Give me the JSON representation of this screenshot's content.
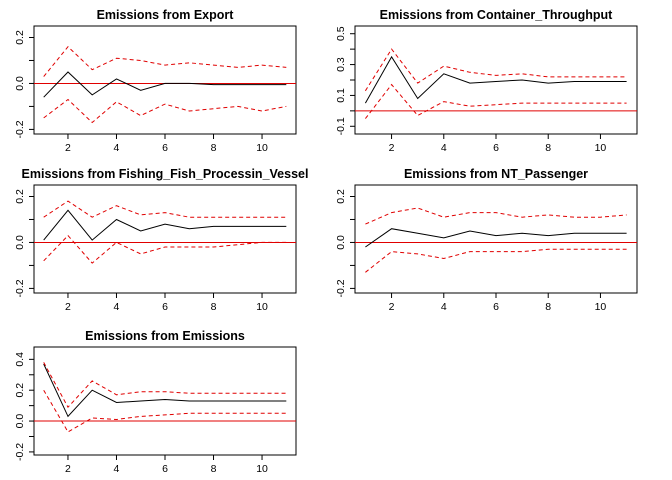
{
  "chart_data": [
    {
      "type": "line",
      "title": "Emissions from Export",
      "xlabel": "",
      "ylabel": "",
      "xlim": [
        0.6,
        11.4
      ],
      "ylim": [
        -0.22,
        0.25
      ],
      "xticks": [
        2,
        4,
        6,
        8,
        10
      ],
      "yticks": [
        -0.2,
        -0.1,
        0.0,
        0.1,
        0.2
      ],
      "ytick_labels": [
        "-0.2",
        "",
        "0.0",
        "",
        "0.2"
      ],
      "zero_line": 0,
      "x": [
        1,
        2,
        3,
        4,
        5,
        6,
        7,
        8,
        9,
        10,
        11
      ],
      "series": [
        {
          "role": "response",
          "color": "#000000",
          "style": "solid",
          "values": [
            -0.06,
            0.05,
            -0.05,
            0.02,
            -0.03,
            0.0,
            0.0,
            -0.005,
            -0.005,
            -0.005,
            -0.005
          ]
        },
        {
          "role": "upper",
          "color": "#e00000",
          "style": "dashed",
          "values": [
            0.03,
            0.16,
            0.06,
            0.11,
            0.1,
            0.08,
            0.09,
            0.08,
            0.07,
            0.08,
            0.07
          ]
        },
        {
          "role": "lower",
          "color": "#e00000",
          "style": "dashed",
          "values": [
            -0.15,
            -0.07,
            -0.17,
            -0.08,
            -0.14,
            -0.09,
            -0.12,
            -0.11,
            -0.1,
            -0.12,
            -0.1
          ]
        }
      ]
    },
    {
      "type": "line",
      "title": "Emissions from Container_Throughput",
      "xlabel": "",
      "ylabel": "",
      "xlim": [
        0.6,
        11.4
      ],
      "ylim": [
        -0.15,
        0.55
      ],
      "xticks": [
        2,
        4,
        6,
        8,
        10
      ],
      "yticks": [
        -0.1,
        0.0,
        0.1,
        0.2,
        0.3,
        0.4,
        0.5
      ],
      "ytick_labels": [
        "-0.1",
        "",
        "0.1",
        "",
        "0.3",
        "",
        "0.5"
      ],
      "zero_line": 0,
      "x": [
        1,
        2,
        3,
        4,
        5,
        6,
        7,
        8,
        9,
        10,
        11
      ],
      "series": [
        {
          "role": "response",
          "color": "#000000",
          "style": "solid",
          "values": [
            0.05,
            0.35,
            0.08,
            0.24,
            0.18,
            0.19,
            0.2,
            0.18,
            0.19,
            0.19,
            0.19
          ]
        },
        {
          "role": "upper",
          "color": "#e00000",
          "style": "dashed",
          "values": [
            0.13,
            0.4,
            0.18,
            0.29,
            0.25,
            0.23,
            0.24,
            0.22,
            0.22,
            0.22,
            0.22
          ]
        },
        {
          "role": "lower",
          "color": "#e00000",
          "style": "dashed",
          "values": [
            -0.05,
            0.17,
            -0.03,
            0.06,
            0.03,
            0.04,
            0.05,
            0.05,
            0.05,
            0.05,
            0.05
          ]
        }
      ]
    },
    {
      "type": "line",
      "title": "Emissions from Fishing_Fish_Processin_Vessel",
      "xlabel": "",
      "ylabel": "",
      "xlim": [
        0.6,
        11.4
      ],
      "ylim": [
        -0.22,
        0.25
      ],
      "xticks": [
        2,
        4,
        6,
        8,
        10
      ],
      "yticks": [
        -0.2,
        -0.1,
        0.0,
        0.1,
        0.2
      ],
      "ytick_labels": [
        "-0.2",
        "",
        "0.0",
        "",
        "0.2"
      ],
      "zero_line": 0,
      "x": [
        1,
        2,
        3,
        4,
        5,
        6,
        7,
        8,
        9,
        10,
        11
      ],
      "series": [
        {
          "role": "response",
          "color": "#000000",
          "style": "solid",
          "values": [
            0.01,
            0.14,
            0.01,
            0.1,
            0.05,
            0.08,
            0.06,
            0.07,
            0.07,
            0.07,
            0.07
          ]
        },
        {
          "role": "upper",
          "color": "#e00000",
          "style": "dashed",
          "values": [
            0.11,
            0.18,
            0.11,
            0.16,
            0.12,
            0.13,
            0.11,
            0.11,
            0.11,
            0.11,
            0.11
          ]
        },
        {
          "role": "lower",
          "color": "#e00000",
          "style": "dashed",
          "values": [
            -0.08,
            0.03,
            -0.09,
            0.0,
            -0.05,
            -0.02,
            -0.02,
            -0.02,
            -0.01,
            0.0,
            0.0
          ]
        }
      ]
    },
    {
      "type": "line",
      "title": "Emissions from NT_Passenger",
      "xlabel": "",
      "ylabel": "",
      "xlim": [
        0.6,
        11.4
      ],
      "ylim": [
        -0.22,
        0.25
      ],
      "xticks": [
        2,
        4,
        6,
        8,
        10
      ],
      "yticks": [
        -0.2,
        -0.1,
        0.0,
        0.1,
        0.2
      ],
      "ytick_labels": [
        "-0.2",
        "",
        "0.0",
        "",
        "0.2"
      ],
      "zero_line": 0,
      "x": [
        1,
        2,
        3,
        4,
        5,
        6,
        7,
        8,
        9,
        10,
        11
      ],
      "series": [
        {
          "role": "response",
          "color": "#000000",
          "style": "solid",
          "values": [
            -0.02,
            0.06,
            0.04,
            0.02,
            0.05,
            0.03,
            0.04,
            0.03,
            0.04,
            0.04,
            0.04
          ]
        },
        {
          "role": "upper",
          "color": "#e00000",
          "style": "dashed",
          "values": [
            0.08,
            0.13,
            0.15,
            0.11,
            0.13,
            0.13,
            0.11,
            0.12,
            0.11,
            0.11,
            0.12
          ]
        },
        {
          "role": "lower",
          "color": "#e00000",
          "style": "dashed",
          "values": [
            -0.13,
            -0.04,
            -0.05,
            -0.07,
            -0.04,
            -0.04,
            -0.04,
            -0.03,
            -0.03,
            -0.03,
            -0.03
          ]
        }
      ]
    },
    {
      "type": "line",
      "title": "Emissions from Emissions",
      "xlabel": "",
      "ylabel": "",
      "xlim": [
        0.6,
        11.4
      ],
      "ylim": [
        -0.22,
        0.48
      ],
      "xticks": [
        2,
        4,
        6,
        8,
        10
      ],
      "yticks": [
        -0.2,
        -0.1,
        0.0,
        0.1,
        0.2,
        0.3,
        0.4
      ],
      "ytick_labels": [
        "-0.2",
        "",
        "0.0",
        "",
        "0.2",
        "",
        "0.4"
      ],
      "zero_line": 0,
      "x": [
        1,
        2,
        3,
        4,
        5,
        6,
        7,
        8,
        9,
        10,
        11
      ],
      "series": [
        {
          "role": "response",
          "color": "#000000",
          "style": "solid",
          "values": [
            0.37,
            0.03,
            0.2,
            0.12,
            0.13,
            0.14,
            0.13,
            0.13,
            0.13,
            0.13,
            0.13
          ]
        },
        {
          "role": "upper",
          "color": "#e00000",
          "style": "dashed",
          "values": [
            0.38,
            0.09,
            0.26,
            0.17,
            0.19,
            0.19,
            0.18,
            0.18,
            0.18,
            0.18,
            0.18
          ]
        },
        {
          "role": "lower",
          "color": "#e00000",
          "style": "dashed",
          "values": [
            0.2,
            -0.07,
            0.02,
            0.01,
            0.03,
            0.04,
            0.05,
            0.05,
            0.05,
            0.05,
            0.05
          ]
        }
      ]
    }
  ]
}
